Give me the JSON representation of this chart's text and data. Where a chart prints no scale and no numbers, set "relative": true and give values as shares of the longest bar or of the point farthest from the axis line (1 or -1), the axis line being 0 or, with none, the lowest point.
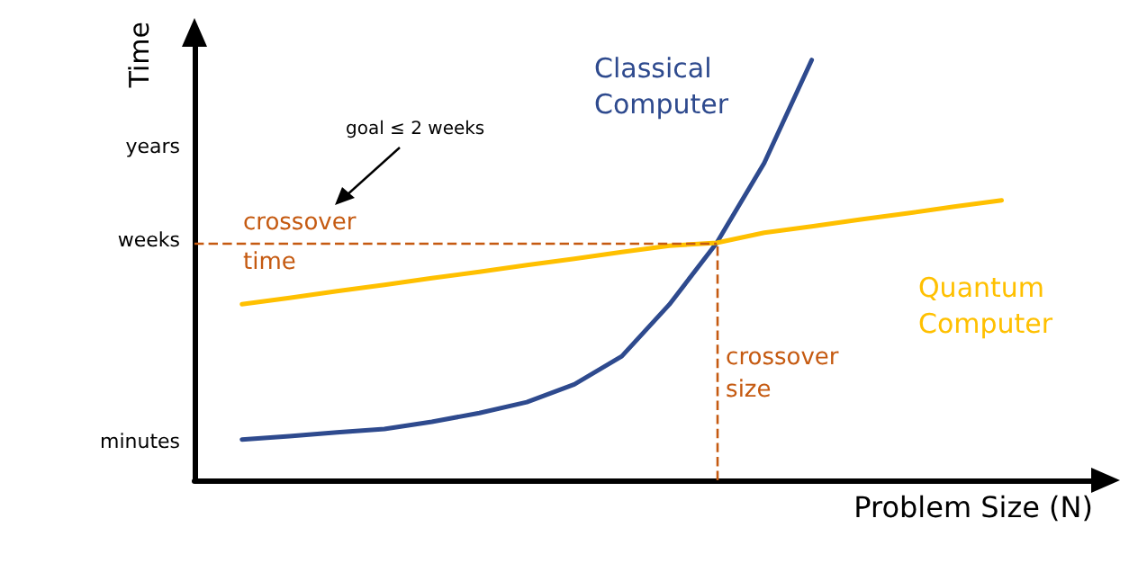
{
  "chart_data": {
    "type": "line",
    "relative": true,
    "xlabel": "Problem Size (N)",
    "ylabel": "Time",
    "categories": [
      null,
      null,
      null,
      null,
      null,
      null,
      null,
      null,
      null,
      null,
      null,
      null,
      null,
      null,
      null,
      null,
      null,
      null,
      null,
      null
    ],
    "series": [
      {
        "name": "Classical Computer",
        "color": "#2e4a8e",
        "values": [
          null,
          0.097,
          0.105,
          0.114,
          0.122,
          0.139,
          0.16,
          0.186,
          0.228,
          0.295,
          0.418,
          0.565,
          0.755,
          1,
          null,
          null,
          null,
          null,
          null,
          null
        ]
      },
      {
        "name": "Quantum Computer",
        "color": "#ffc000",
        "values": [
          null,
          0.419,
          0.434,
          0.45,
          0.465,
          0.481,
          0.496,
          0.512,
          0.527,
          0.543,
          0.558,
          0.565,
          0.589,
          0.604,
          0.62,
          0.635,
          0.651,
          0.666,
          null,
          null
        ]
      }
    ],
    "ref_lines": [
      {
        "axis": "y",
        "value": 0.565,
        "label": "crossover time",
        "color": "#c55a11",
        "line_style": "dashed"
      }
    ],
    "annotations": [
      "goal ≤ 2 weeks",
      "crossover size",
      "minutes",
      "weeks",
      "years"
    ],
    "grid": false,
    "legend": false,
    "marker": "none",
    "line_style": "solid"
  }
}
